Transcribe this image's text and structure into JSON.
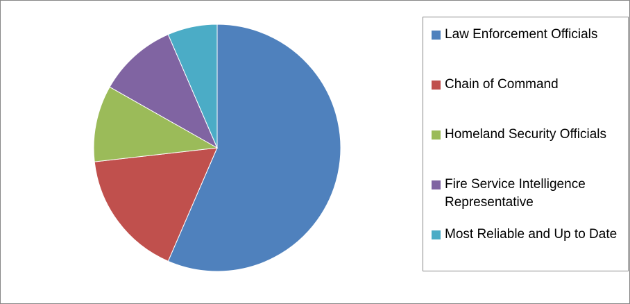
{
  "chart_data": {
    "type": "pie",
    "categories": [
      "Law Enforcement Officials",
      "Chain of Command",
      "Homeland Security Officials",
      "Fire Service Intelligence Representative",
      "Most Reliable and Up to Date"
    ],
    "values": [
      56.5,
      16.7,
      10,
      10.3,
      6.5
    ],
    "colors": [
      "#4f81bd",
      "#c0504d",
      "#9bbb59",
      "#8064a2",
      "#4bacc6"
    ],
    "legend": "right"
  }
}
